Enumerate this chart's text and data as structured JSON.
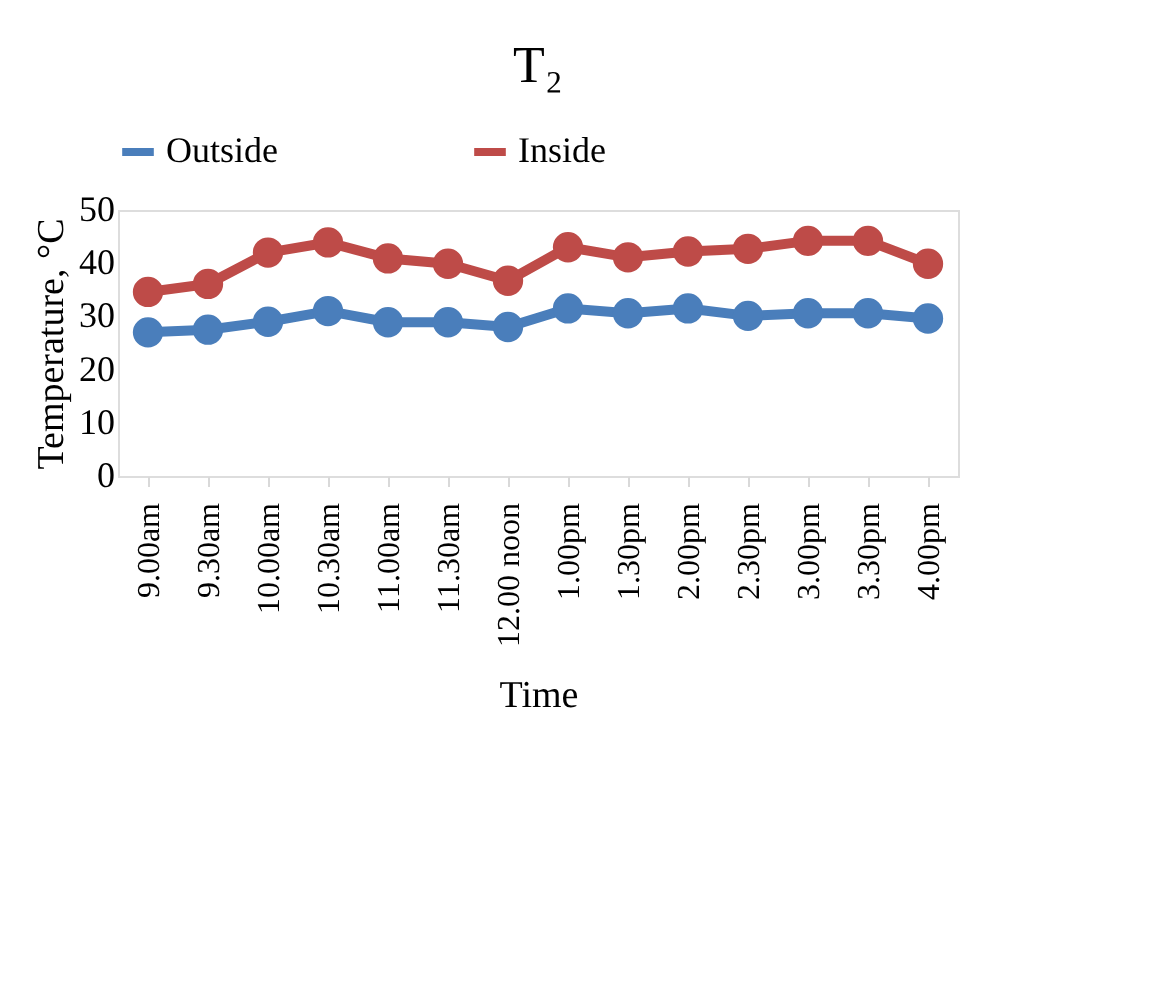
{
  "chart_data": {
    "type": "line",
    "title": "T₂",
    "xlabel": "Time",
    "ylabel": "Temperature, °C",
    "categories": [
      "9.00am",
      "9.30am",
      "10.00am",
      "10.30am",
      "11.00am",
      "11.30am",
      "12.00 noon",
      "1.00pm",
      "1.30pm",
      "2.00pm",
      "2.30pm",
      "3.00pm",
      "3.30pm",
      "4.00pm"
    ],
    "series": [
      {
        "name": "Outside",
        "color": "#4a7ebb",
        "values": [
          27.0,
          27.5,
          29.0,
          31.0,
          28.9,
          28.9,
          28.0,
          31.5,
          30.6,
          31.5,
          30.1,
          30.6,
          30.6,
          29.6
        ]
      },
      {
        "name": "Inside",
        "color": "#be4b48",
        "values": [
          34.6,
          36.1,
          42.0,
          43.9,
          40.9,
          39.9,
          36.7,
          43.0,
          41.1,
          42.2,
          42.7,
          44.2,
          44.2,
          39.9
        ]
      }
    ],
    "ylim": [
      0,
      50
    ],
    "yticks": [
      0,
      10,
      20,
      30,
      40,
      50
    ],
    "grid": false,
    "legend": "top",
    "marker": "circle",
    "line_style": "solid"
  }
}
